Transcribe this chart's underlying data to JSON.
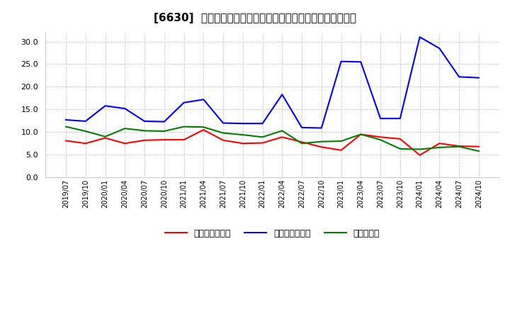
{
  "title": "[6630]  売上債権回転率、買入債務回転率、在庫回転率の推移",
  "x_labels": [
    "2019/07",
    "2019/10",
    "2020/01",
    "2020/04",
    "2020/07",
    "2020/10",
    "2021/01",
    "2021/04",
    "2021/07",
    "2021/10",
    "2022/01",
    "2022/04",
    "2022/07",
    "2022/10",
    "2023/01",
    "2023/04",
    "2023/07",
    "2023/10",
    "2024/01",
    "2024/04",
    "2024/07",
    "2024/10"
  ],
  "receivables_turnover": [
    8.1,
    7.5,
    8.7,
    7.5,
    8.2,
    8.3,
    8.3,
    10.5,
    8.2,
    7.5,
    7.6,
    8.9,
    7.8,
    6.7,
    6.0,
    9.5,
    8.9,
    8.5,
    4.9,
    7.5,
    6.9,
    6.8
  ],
  "payables_turnover": [
    12.7,
    12.4,
    15.8,
    15.2,
    12.4,
    12.3,
    16.5,
    17.2,
    12.0,
    11.9,
    11.9,
    18.3,
    11.0,
    10.9,
    25.6,
    25.5,
    13.0,
    13.0,
    31.0,
    28.5,
    22.2,
    22.0
  ],
  "inventory_turnover": [
    11.2,
    10.2,
    9.0,
    10.8,
    10.3,
    10.2,
    11.2,
    11.1,
    9.8,
    9.4,
    8.9,
    10.3,
    7.5,
    7.9,
    8.0,
    9.5,
    8.3,
    6.3,
    6.2,
    6.6,
    6.8,
    5.8
  ],
  "receivables_color": "#ff0000",
  "payables_color": "#0000ff",
  "inventory_color": "#008000",
  "ylim": [
    0,
    32
  ],
  "yticks": [
    0.0,
    5.0,
    10.0,
    15.0,
    20.0,
    25.0,
    30.0
  ],
  "legend_labels": [
    "売上債権回転率",
    "買入債務回転率",
    "在庫回転率"
  ],
  "bg_color": "#ffffff",
  "plot_bg_color": "#ffffff",
  "grid_color": "#aaaaaa",
  "line_width": 1.5,
  "title_fontsize": 11,
  "tick_fontsize": 7,
  "legend_fontsize": 9
}
